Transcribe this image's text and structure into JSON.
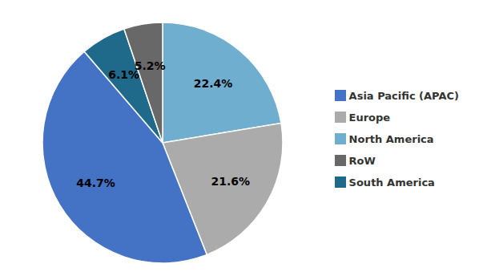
{
  "chart_data": {
    "type": "pie",
    "categories": [
      "North America",
      "Europe",
      "Asia Pacific (APAC)",
      "South America",
      "RoW"
    ],
    "values": [
      22.4,
      21.6,
      44.7,
      6.1,
      5.2
    ],
    "value_labels": [
      "22.4%",
      "21.6%",
      "44.7%",
      "6.1%",
      "5.2%"
    ],
    "colors": [
      "#70AECF",
      "#ABABAB",
      "#4472C4",
      "#1F6A8A",
      "#686868"
    ],
    "data_labels": true,
    "legend": "right"
  }
}
